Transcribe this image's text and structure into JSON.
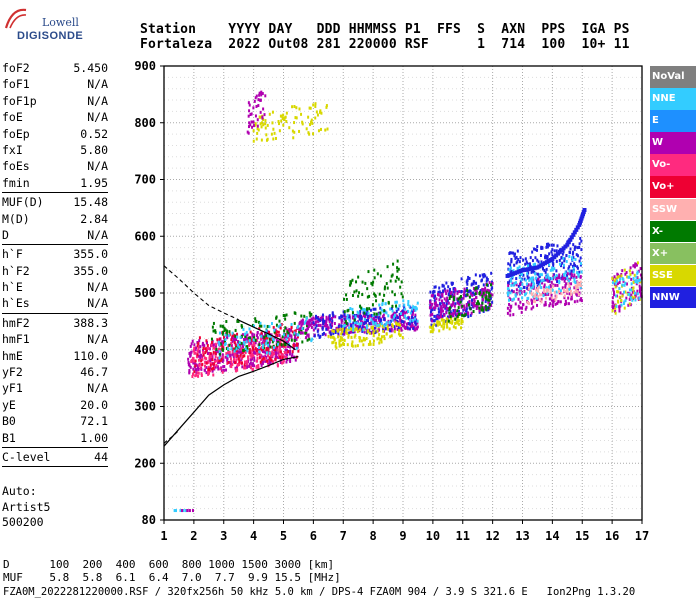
{
  "logo": {
    "line1": "Lowell",
    "line2": "DIGISONDE"
  },
  "header": {
    "line1": "Station    YYYY DAY   DDD HHMMSS P1  FFS  S  AXN  PPS  IGA PS",
    "line2": "Fortaleza  2022 Out08 281 220000 RSF      1  714  100  10+ 11"
  },
  "params": [
    {
      "label": "foF2",
      "value": "5.450"
    },
    {
      "label": "foF1",
      "value": "N/A"
    },
    {
      "label": "foF1p",
      "value": "N/A"
    },
    {
      "label": "foE",
      "value": "N/A"
    },
    {
      "label": "foEp",
      "value": "0.52"
    },
    {
      "label": "fxI",
      "value": "5.80"
    },
    {
      "label": "foEs",
      "value": "N/A"
    },
    {
      "label": "fmin",
      "value": "1.95"
    },
    {
      "sep": true
    },
    {
      "label": "MUF(D)",
      "value": "15.48"
    },
    {
      "label": "M(D)",
      "value": "2.84"
    },
    {
      "label": "D",
      "value": "N/A"
    },
    {
      "sep": true
    },
    {
      "label": "h`F",
      "value": "355.0"
    },
    {
      "label": "h`F2",
      "value": "355.0"
    },
    {
      "label": "h`E",
      "value": "N/A"
    },
    {
      "label": "h`Es",
      "value": "N/A"
    },
    {
      "sep": true
    },
    {
      "label": "hmF2",
      "value": "388.3"
    },
    {
      "label": "hmF1",
      "value": "N/A"
    },
    {
      "label": "hmE",
      "value": "110.0"
    },
    {
      "label": "yF2",
      "value": "46.7"
    },
    {
      "label": "yF1",
      "value": "N/A"
    },
    {
      "label": "yE",
      "value": "20.0"
    },
    {
      "label": "B0",
      "value": "72.1"
    },
    {
      "label": "B1",
      "value": "1.00"
    },
    {
      "sep": true
    },
    {
      "label": "C-level",
      "value": "44"
    },
    {
      "sep": true
    }
  ],
  "auto": {
    "line1": "Auto:",
    "line2": "Artist5",
    "line3": "500200"
  },
  "legend": [
    {
      "label": "NoVal",
      "color": "#7f7f7f"
    },
    {
      "label": "NNE",
      "color": "#33ccff"
    },
    {
      "label": "E",
      "color": "#1e90ff"
    },
    {
      "label": "W",
      "color": "#b000b0"
    },
    {
      "label": "Vo-",
      "color": "#ff2a7f"
    },
    {
      "label": "Vo+",
      "color": "#ee0033"
    },
    {
      "label": "SSW",
      "color": "#ffb0b0"
    },
    {
      "label": "X-",
      "color": "#007a00"
    },
    {
      "label": "X+",
      "color": "#88c060"
    },
    {
      "label": "SSE",
      "color": "#d8d800"
    },
    {
      "label": "NNW",
      "color": "#2020e0"
    }
  ],
  "footer": {
    "line1": "D      100  200  400  600  800 1000 1500 3000 [km]",
    "line2": "MUF    5.8  5.8  6.1  6.4  7.0  7.7  9.9 15.5 [MHz]",
    "line3": "FZA0M_2022281220000.RSF / 320fx256h 50 kHz 5.0 km / DPS-4 FZA0M 904 / 3.9 S 321.6 E   Ion2Png 1.3.20"
  },
  "chart_data": {
    "type": "scatter",
    "x_ticks": [
      1,
      2,
      3,
      4,
      5,
      6,
      7,
      8,
      9,
      10,
      11,
      12,
      13,
      14,
      15,
      16,
      17
    ],
    "y_ticks": [
      80,
      200,
      300,
      400,
      500,
      600,
      700,
      800,
      900
    ],
    "xlim": [
      1,
      17
    ],
    "ylim": [
      80,
      900
    ],
    "grid": true,
    "legend_position": "right",
    "echo_clusters": [
      {
        "color": "#b000b0",
        "x": [
          1.8,
          5.5
        ],
        "y": [
          355,
          440
        ],
        "n": 400
      },
      {
        "color": "#ff2a7f",
        "x": [
          1.9,
          5.2
        ],
        "y": [
          350,
          430
        ],
        "n": 220
      },
      {
        "color": "#ee0033",
        "x": [
          2.0,
          5.5
        ],
        "y": [
          360,
          450
        ],
        "n": 140
      },
      {
        "color": "#007a00",
        "x": [
          2.5,
          6.0
        ],
        "y": [
          390,
          470
        ],
        "n": 120
      },
      {
        "color": "#33ccff",
        "x": [
          2.8,
          6.0
        ],
        "y": [
          380,
          460
        ],
        "n": 80
      },
      {
        "color": "#d8d800",
        "x": [
          4.0,
          6.5
        ],
        "y": [
          760,
          840
        ],
        "n": 90
      },
      {
        "color": "#b000b0",
        "x": [
          3.8,
          4.4
        ],
        "y": [
          780,
          860
        ],
        "n": 40
      },
      {
        "color": "#b000b0",
        "x": [
          5.5,
          9.5
        ],
        "y": [
          420,
          470
        ],
        "n": 320
      },
      {
        "color": "#2020e0",
        "x": [
          6.0,
          9.5
        ],
        "y": [
          420,
          480
        ],
        "n": 150
      },
      {
        "color": "#d8d800",
        "x": [
          6.5,
          9.0
        ],
        "y": [
          400,
          450
        ],
        "n": 120
      },
      {
        "color": "#33ccff",
        "x": [
          7.0,
          9.5
        ],
        "y": [
          430,
          490
        ],
        "n": 90
      },
      {
        "color": "#007a00",
        "x": [
          7.0,
          9.0
        ],
        "y": [
          440,
          560
        ],
        "n": 80
      },
      {
        "color": "#2020e0",
        "x": [
          9.9,
          12.0
        ],
        "y": [
          440,
          540
        ],
        "n": 220
      },
      {
        "color": "#b000b0",
        "x": [
          9.9,
          12.0
        ],
        "y": [
          450,
          520
        ],
        "n": 160
      },
      {
        "color": "#d8d800",
        "x": [
          9.9,
          11.0
        ],
        "y": [
          430,
          460
        ],
        "n": 60
      },
      {
        "color": "#007a00",
        "x": [
          10.5,
          12.0
        ],
        "y": [
          450,
          520
        ],
        "n": 60
      },
      {
        "color": "#2020e0",
        "x": [
          12.5,
          15.0
        ],
        "y": [
          500,
          600
        ],
        "n": 200
      },
      {
        "color": "#b000b0",
        "x": [
          12.5,
          15.0
        ],
        "y": [
          460,
          540
        ],
        "n": 180
      },
      {
        "color": "#33ccff",
        "x": [
          12.5,
          15.0
        ],
        "y": [
          480,
          570
        ],
        "n": 140
      },
      {
        "color": "#ffb0b0",
        "x": [
          13.0,
          15.0
        ],
        "y": [
          480,
          520
        ],
        "n": 60
      },
      {
        "color": "#b000b0",
        "x": [
          16.0,
          17.0
        ],
        "y": [
          460,
          560
        ],
        "n": 90
      },
      {
        "color": "#d8d800",
        "x": [
          16.0,
          17.0
        ],
        "y": [
          460,
          560
        ],
        "n": 40
      },
      {
        "color": "#33ccff",
        "x": [
          16.0,
          17.0
        ],
        "y": [
          470,
          540
        ],
        "n": 40
      }
    ],
    "nnw_trace": {
      "color": "#2020e0",
      "x": [
        12.5,
        13.0,
        13.5,
        14.0,
        14.5,
        14.9,
        15.1
      ],
      "y": [
        530,
        540,
        545,
        560,
        585,
        620,
        650
      ]
    },
    "profile_solid": {
      "x": [
        1.0,
        1.5,
        2.0,
        2.5,
        3.0,
        3.5,
        4.0,
        4.5,
        5.0,
        5.5
      ],
      "y": [
        230,
        260,
        290,
        320,
        338,
        353,
        362,
        372,
        383,
        388
      ]
    },
    "profile_dashed": {
      "x": [
        1.0,
        1.1,
        1.3,
        1.5
      ],
      "y": [
        235,
        240,
        248,
        258
      ]
    },
    "trace_dashed_upper": {
      "x": [
        1.0,
        1.5,
        2.0,
        2.5,
        3.0,
        3.5
      ],
      "y": [
        548,
        525,
        500,
        478,
        465,
        453
      ]
    },
    "trace_solid_upper": {
      "x": [
        3.5,
        4.0,
        4.5,
        5.0,
        5.4
      ],
      "y": [
        452,
        440,
        428,
        415,
        400
      ]
    }
  }
}
